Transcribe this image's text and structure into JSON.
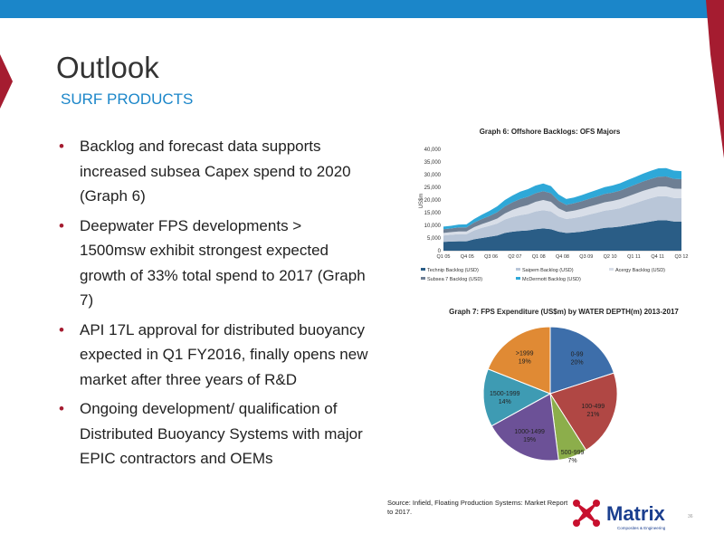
{
  "slide": {
    "title": "Outlook",
    "subtitle": "SURF PRODUCTS",
    "page_number": "36"
  },
  "bullets": [
    "Backlog and forecast data supports increased subsea Capex spend to 2020 (Graph 6)",
    "Deepwater FPS developments > 1500msw exhibit strongest expected growth of 33% total spend to 2017 (Graph 7)",
    "API 17L approval for distributed buoyancy expected in Q1 FY2016, finally opens new market after three years of R&D",
    "Ongoing development/ qualification of Distributed Buoyancy Systems with major EPIC contractors and OEMs"
  ],
  "source": "Source: Infield, Floating Production Systems: Market Report to 2017.",
  "logo": {
    "text": "Matrix",
    "tagline": "Composites & Engineering"
  },
  "colors": {
    "brand_blue": "#1b86c9",
    "brand_red": "#a51c30"
  },
  "chart_data": [
    {
      "type": "area",
      "title": "Graph 6: Offshore Backlogs: OFS Majors",
      "ylabel": "US$m",
      "ylim": [
        0,
        40000
      ],
      "yticks": [
        "0",
        "5,000",
        "10,000",
        "15,000",
        "20,000",
        "25,000",
        "30,000",
        "35,000",
        "40,000"
      ],
      "x_tick_labels": [
        "Q1 05",
        "Q4 05",
        "Q3 06",
        "Q2 07",
        "Q1 08",
        "Q4 08",
        "Q3 09",
        "Q2 10",
        "Q1 11",
        "Q4 11",
        "Q3 12"
      ],
      "legend": [
        "Technip Backlog (USD)",
        "Saipem Backlog (USD)",
        "Acergy Backlog (USD)",
        "Subsea 7 Backlog (USD)",
        "McDermott Backlog (USD)"
      ],
      "series": [
        {
          "name": "Technip Backlog (USD)",
          "color": "#2a5d86",
          "values": [
            3500,
            3600,
            3700,
            3700,
            4500,
            5000,
            5500,
            6000,
            7000,
            7500,
            7800,
            8000,
            8500,
            8800,
            8500,
            7500,
            7000,
            7200,
            7500,
            8000,
            8500,
            9000,
            9200,
            9500,
            10000,
            10500,
            11000,
            11500,
            12000,
            12000,
            11500,
            11500
          ]
        },
        {
          "name": "Saipem Backlog (USD)",
          "color": "#b9c6d8",
          "values": [
            2500,
            2700,
            2800,
            2800,
            3500,
            4000,
            4300,
            4700,
            5300,
            5800,
            6200,
            6500,
            7000,
            7200,
            7000,
            6000,
            5500,
            5700,
            6000,
            6300,
            6500,
            6800,
            7000,
            7300,
            7800,
            8300,
            8800,
            9200,
            9500,
            9500,
            9300,
            9200
          ]
        },
        {
          "name": "Acergy Backlog (USD)",
          "color": "#d8dee8",
          "values": [
            1000,
            1000,
            1100,
            1100,
            1300,
            1500,
            1700,
            2000,
            2400,
            2800,
            3200,
            3500,
            3800,
            4000,
            3800,
            3200,
            2800,
            2900,
            3000,
            3100,
            3200,
            3300,
            3400,
            3500,
            3600,
            3700,
            3800,
            3800,
            3800,
            3800,
            3700,
            3700
          ]
        },
        {
          "name": "Subsea 7 Backlog (USD)",
          "color": "#6e7f94",
          "values": [
            1500,
            1500,
            1600,
            1600,
            1800,
            2000,
            2200,
            2500,
            2800,
            3000,
            3200,
            3300,
            3400,
            3500,
            3400,
            3000,
            2800,
            2900,
            3000,
            3100,
            3200,
            3300,
            3300,
            3400,
            3500,
            3600,
            3700,
            3800,
            3900,
            4000,
            3900,
            3800
          ]
        },
        {
          "name": "McDermott Backlog (USD)",
          "color": "#2ea8d8",
          "values": [
            1000,
            1000,
            1100,
            1200,
            1400,
            1700,
            2000,
            2300,
            2500,
            2700,
            2900,
            3000,
            3000,
            3000,
            2800,
            2500,
            2300,
            2300,
            2400,
            2500,
            2600,
            2700,
            2800,
            2900,
            3000,
            3000,
            3100,
            3200,
            3300,
            3300,
            3200,
            3200
          ]
        }
      ]
    },
    {
      "type": "pie",
      "title": "Graph 7: FPS Expenditure (US$m) by WATER DEPTH(m) 2013-2017",
      "slices": [
        {
          "label": "0-99",
          "pct_label": "20%",
          "value": 20,
          "color": "#3d6eaa"
        },
        {
          "label": "100-499",
          "pct_label": "21%",
          "value": 21,
          "color": "#b04744"
        },
        {
          "label": "500-999",
          "pct_label": "7%",
          "value": 7,
          "color": "#8cae4b"
        },
        {
          "label": "1000-1499",
          "pct_label": "19%",
          "value": 19,
          "color": "#6c5197"
        },
        {
          "label": "1500-1999",
          "pct_label": "14%",
          "value": 14,
          "color": "#3e9bb3"
        },
        {
          "label": ">1999",
          "pct_label": "19%",
          "value": 19,
          "color": "#e08a34"
        }
      ]
    }
  ]
}
